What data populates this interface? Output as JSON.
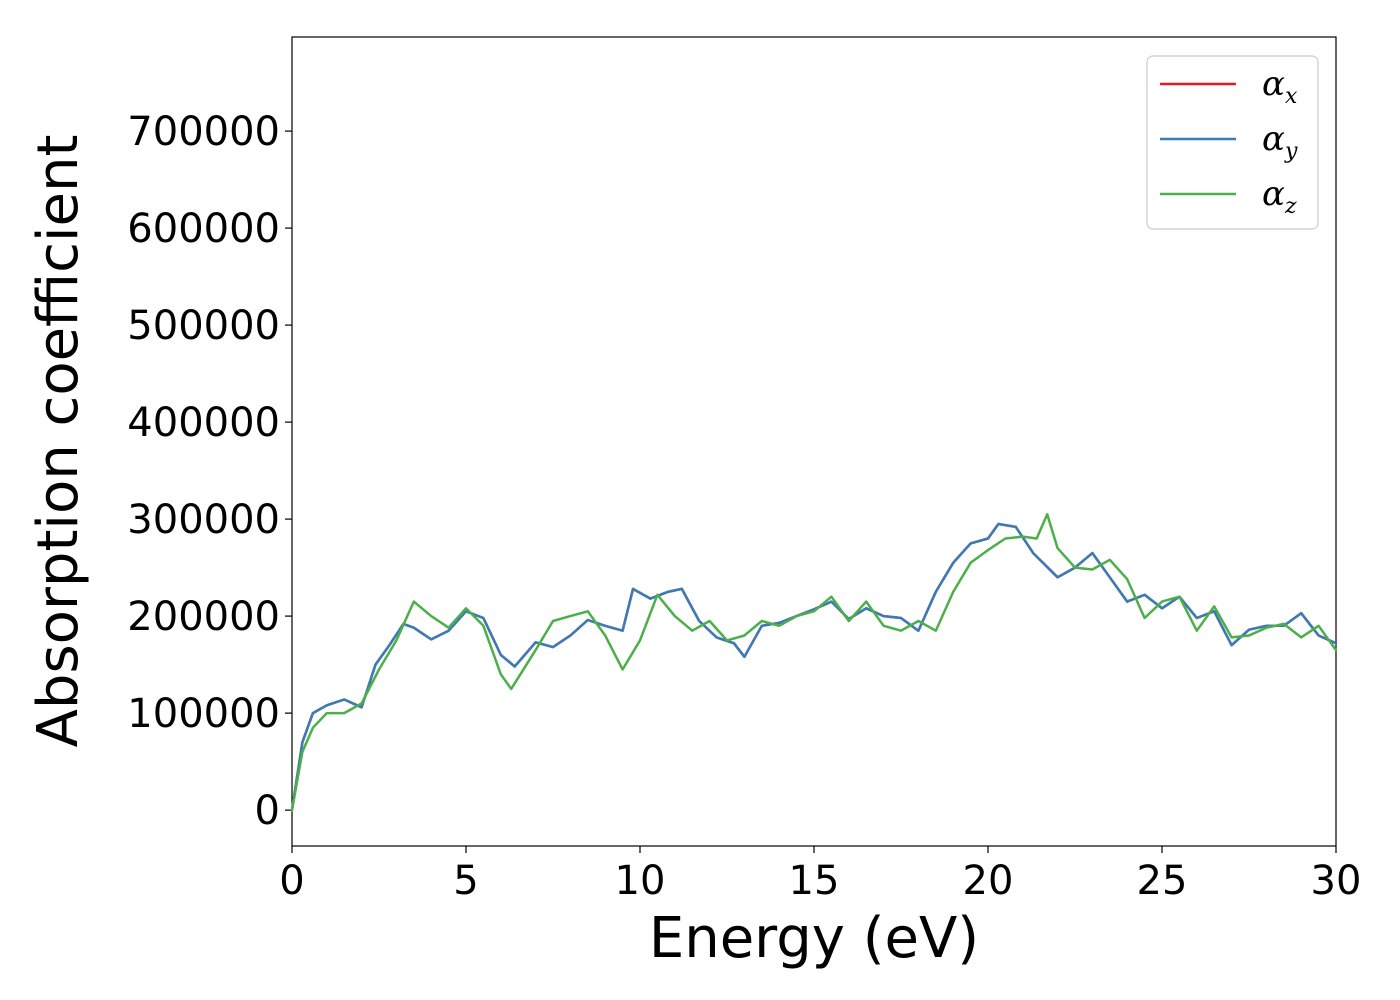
{
  "chart_data": {
    "type": "line",
    "title": "",
    "xlabel": "Energy (eV)",
    "ylabel": "Absorption coefficient",
    "xlim": [
      0,
      30
    ],
    "ylim": [
      -37000,
      797000
    ],
    "xticks": [
      0,
      5,
      10,
      15,
      20,
      25,
      30
    ],
    "xtick_labels": [
      "0",
      "5",
      "10",
      "15",
      "20",
      "25",
      "30"
    ],
    "yticks": [
      0,
      100000,
      200000,
      300000,
      400000,
      500000,
      600000,
      700000
    ],
    "ytick_labels": [
      "0",
      "100000",
      "200000",
      "300000",
      "400000",
      "500000",
      "600000",
      "700000"
    ],
    "grid": false,
    "legend_position": "top-right",
    "series": [
      {
        "name": "α_x",
        "legend_symbol": "α",
        "legend_sub": "x",
        "color": "#e41a1c",
        "x": [
          0,
          0.3,
          0.6,
          1.0,
          1.5,
          2.0,
          2.4,
          2.8,
          3.2,
          3.5,
          4.0,
          4.5,
          5.0,
          5.5,
          6.0,
          6.4,
          7.0,
          7.5,
          8.0,
          8.5,
          9.0,
          9.5,
          9.8,
          10.3,
          10.8,
          11.2,
          11.7,
          12.2,
          12.7,
          13.0,
          13.5,
          14.0,
          14.5,
          15.0,
          15.5,
          16.0,
          16.5,
          17.0,
          17.5,
          18.0,
          18.5,
          19.0,
          19.5,
          20.0,
          20.3,
          20.8,
          21.3,
          22.0,
          22.5,
          23.0,
          23.5,
          24.0,
          24.5,
          25.0,
          25.5,
          26.0,
          26.5,
          27.0,
          27.5,
          28.0,
          28.5,
          29.0,
          29.5,
          30.0
        ],
        "y": [
          0,
          70000,
          100000,
          108000,
          114000,
          106000,
          150000,
          170000,
          192000,
          188000,
          176000,
          185000,
          205000,
          198000,
          160000,
          148000,
          173000,
          168000,
          180000,
          196000,
          190000,
          185000,
          228000,
          218000,
          225000,
          228000,
          195000,
          178000,
          172000,
          158000,
          190000,
          193000,
          200000,
          207000,
          215000,
          197000,
          208000,
          200000,
          198000,
          185000,
          225000,
          255000,
          275000,
          280000,
          295000,
          292000,
          265000,
          240000,
          250000,
          265000,
          240000,
          215000,
          222000,
          208000,
          220000,
          198000,
          205000,
          170000,
          186000,
          190000,
          190000,
          203000,
          180000,
          172000
        ]
      },
      {
        "name": "α_y",
        "legend_symbol": "α",
        "legend_sub": "y",
        "color": "#377eb8",
        "x": [
          0,
          0.3,
          0.6,
          1.0,
          1.5,
          2.0,
          2.4,
          2.8,
          3.2,
          3.5,
          4.0,
          4.5,
          5.0,
          5.5,
          6.0,
          6.4,
          7.0,
          7.5,
          8.0,
          8.5,
          9.0,
          9.5,
          9.8,
          10.3,
          10.8,
          11.2,
          11.7,
          12.2,
          12.7,
          13.0,
          13.5,
          14.0,
          14.5,
          15.0,
          15.5,
          16.0,
          16.5,
          17.0,
          17.5,
          18.0,
          18.5,
          19.0,
          19.5,
          20.0,
          20.3,
          20.8,
          21.3,
          22.0,
          22.5,
          23.0,
          23.5,
          24.0,
          24.5,
          25.0,
          25.5,
          26.0,
          26.5,
          27.0,
          27.5,
          28.0,
          28.5,
          29.0,
          29.5,
          30.0
        ],
        "y": [
          0,
          70000,
          100000,
          108000,
          114000,
          106000,
          150000,
          170000,
          192000,
          188000,
          176000,
          185000,
          205000,
          198000,
          160000,
          148000,
          173000,
          168000,
          180000,
          196000,
          190000,
          185000,
          228000,
          218000,
          225000,
          228000,
          195000,
          178000,
          172000,
          158000,
          190000,
          193000,
          200000,
          207000,
          215000,
          197000,
          208000,
          200000,
          198000,
          185000,
          225000,
          255000,
          275000,
          280000,
          295000,
          292000,
          265000,
          240000,
          250000,
          265000,
          240000,
          215000,
          222000,
          208000,
          220000,
          198000,
          205000,
          170000,
          186000,
          190000,
          190000,
          203000,
          180000,
          172000
        ]
      },
      {
        "name": "α_z",
        "legend_symbol": "α",
        "legend_sub": "z",
        "color": "#4daf4a",
        "x": [
          0,
          0.3,
          0.6,
          1.0,
          1.5,
          2.0,
          2.5,
          3.0,
          3.5,
          4.0,
          4.5,
          5.0,
          5.5,
          6.0,
          6.3,
          7.0,
          7.5,
          8.0,
          8.5,
          9.0,
          9.5,
          10.0,
          10.5,
          11.0,
          11.5,
          12.0,
          12.5,
          13.0,
          13.5,
          14.0,
          14.5,
          15.0,
          15.5,
          16.0,
          16.5,
          17.0,
          17.5,
          18.0,
          18.5,
          19.0,
          19.5,
          20.0,
          20.5,
          21.0,
          21.4,
          21.7,
          22.0,
          22.5,
          23.0,
          23.5,
          24.0,
          24.5,
          25.0,
          25.5,
          26.0,
          26.5,
          27.0,
          27.5,
          28.0,
          28.5,
          29.0,
          29.5,
          30.0
        ],
        "y": [
          0,
          60000,
          85000,
          100000,
          100000,
          110000,
          145000,
          175000,
          215000,
          200000,
          188000,
          208000,
          190000,
          140000,
          125000,
          165000,
          195000,
          200000,
          205000,
          180000,
          145000,
          175000,
          222000,
          200000,
          185000,
          195000,
          175000,
          180000,
          195000,
          190000,
          200000,
          205000,
          220000,
          195000,
          215000,
          190000,
          185000,
          195000,
          185000,
          225000,
          255000,
          268000,
          280000,
          282000,
          280000,
          305000,
          270000,
          250000,
          248000,
          258000,
          238000,
          198000,
          215000,
          220000,
          185000,
          210000,
          178000,
          180000,
          188000,
          192000,
          178000,
          190000,
          165000
        ]
      }
    ]
  }
}
